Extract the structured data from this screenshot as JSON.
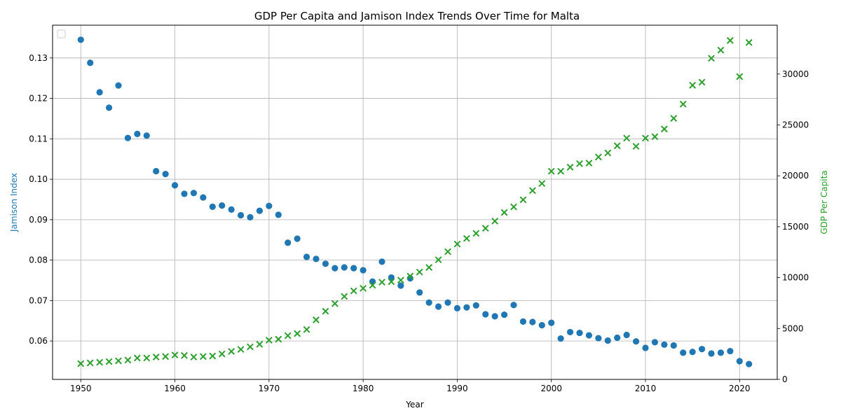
{
  "chart_data": {
    "type": "scatter",
    "title": "GDP Per Capita and Jamison Index Trends Over Time for Malta",
    "xlabel": "Year",
    "ylabel_left": "Jamison Index",
    "ylabel_right": "GDP Per Capita",
    "xlim": [
      1947,
      2024
    ],
    "ylim_left": [
      0.0505,
      0.1381
    ],
    "ylim_right": [
      0,
      34800
    ],
    "x_ticks": [
      1950,
      1960,
      1970,
      1980,
      1990,
      2000,
      2010,
      2020
    ],
    "y_left_ticks": [
      0.06,
      0.07,
      0.08,
      0.09,
      0.1,
      0.11,
      0.12,
      0.13
    ],
    "y_left_tick_labels": [
      "0.06",
      "0.07",
      "0.08",
      "0.09",
      "0.10",
      "0.11",
      "0.12",
      "0.13"
    ],
    "y_right_ticks": [
      0,
      5000,
      10000,
      15000,
      20000,
      25000,
      30000
    ],
    "grid": true,
    "legend": "top-left (empty)",
    "x": [
      1950,
      1951,
      1952,
      1953,
      1954,
      1955,
      1956,
      1957,
      1958,
      1959,
      1960,
      1961,
      1962,
      1963,
      1964,
      1965,
      1966,
      1967,
      1968,
      1969,
      1970,
      1971,
      1972,
      1973,
      1974,
      1975,
      1976,
      1977,
      1978,
      1979,
      1980,
      1981,
      1982,
      1983,
      1984,
      1985,
      1986,
      1987,
      1988,
      1989,
      1990,
      1991,
      1992,
      1993,
      1994,
      1995,
      1996,
      1997,
      1998,
      1999,
      2000,
      2001,
      2002,
      2003,
      2004,
      2005,
      2006,
      2007,
      2008,
      2009,
      2010,
      2011,
      2012,
      2013,
      2014,
      2015,
      2016,
      2017,
      2018,
      2019,
      2020,
      2021
    ],
    "series": [
      {
        "name": "Jamison Index",
        "axis": "left",
        "marker": "circle",
        "color": "#1f77b4",
        "values": [
          0.1345,
          0.1288,
          0.1215,
          0.1177,
          0.1232,
          0.1102,
          0.1112,
          0.1108,
          0.102,
          0.1013,
          0.0985,
          0.0964,
          0.0966,
          0.0955,
          0.0932,
          0.0935,
          0.0925,
          0.0911,
          0.0906,
          0.0922,
          0.0934,
          0.0912,
          0.0843,
          0.0853,
          0.0808,
          0.0803,
          0.0791,
          0.078,
          0.0782,
          0.078,
          0.0775,
          0.0747,
          0.0796,
          0.0757,
          0.0737,
          0.0755,
          0.072,
          0.0695,
          0.0685,
          0.0695,
          0.0681,
          0.0683,
          0.0688,
          0.0666,
          0.0661,
          0.0665,
          0.0689,
          0.0648,
          0.0647,
          0.0639,
          0.0645,
          0.0606,
          0.0622,
          0.062,
          0.0614,
          0.0607,
          0.0601,
          0.0608,
          0.0615,
          0.0599,
          0.0583,
          0.0597,
          0.0591,
          0.0589,
          0.0571,
          0.0573,
          0.058,
          0.0569,
          0.0571,
          0.0575,
          0.055,
          0.0543
        ]
      },
      {
        "name": "GDP Per Capita",
        "axis": "right",
        "marker": "x",
        "color": "#2ca02c",
        "values": [
          1550,
          1620,
          1680,
          1750,
          1820,
          1900,
          2100,
          2100,
          2200,
          2250,
          2400,
          2350,
          2200,
          2250,
          2300,
          2500,
          2750,
          2950,
          3200,
          3450,
          3850,
          3950,
          4300,
          4500,
          4900,
          5850,
          6700,
          7450,
          8150,
          8700,
          8950,
          9250,
          9550,
          9600,
          9750,
          10150,
          10550,
          11000,
          11750,
          12550,
          13300,
          13850,
          14350,
          14850,
          15550,
          16400,
          16950,
          17650,
          18550,
          19250,
          20450,
          20450,
          20850,
          21200,
          21250,
          21850,
          22250,
          22950,
          23700,
          22900,
          23700,
          23850,
          24600,
          25650,
          27050,
          28900,
          29200,
          31550,
          32350,
          33300,
          29750,
          33100
        ]
      }
    ]
  }
}
